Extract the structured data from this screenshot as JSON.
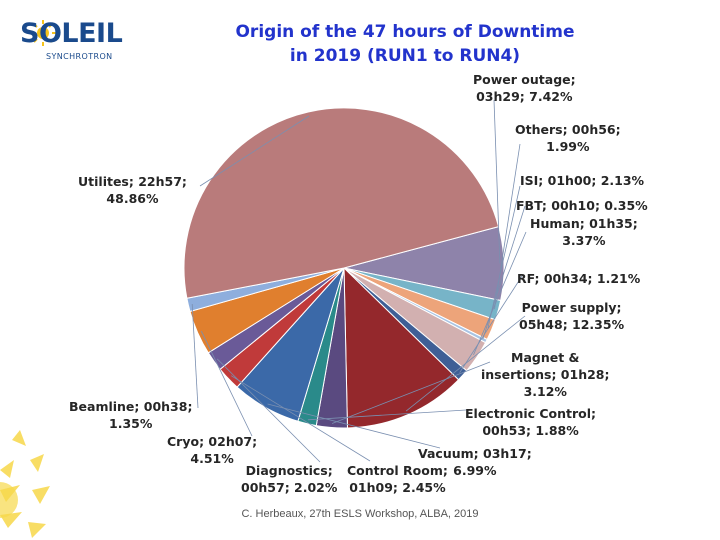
{
  "logo": {
    "text": "SOLEIL",
    "subtext": "SYNCHROTRON"
  },
  "chart_data": {
    "type": "pie",
    "title": [
      "Origin of the 47 hours of Downtime",
      "in 2019 (RUN1 to RUN4)"
    ],
    "slices": [
      {
        "category": "Power outage",
        "duration": "03h29",
        "value": 7.42,
        "color": "#8e83aa",
        "label": [
          "Power outage;",
          "03h29; 7.42%"
        ]
      },
      {
        "category": "Others",
        "duration": "00h56",
        "value": 1.99,
        "color": "#77b4c8",
        "label": [
          "Others; 00h56;",
          "1.99%"
        ]
      },
      {
        "category": "ISI",
        "duration": "01h00",
        "value": 2.13,
        "color": "#eda47a",
        "label": [
          "ISI; 01h00; 2.13%"
        ]
      },
      {
        "category": "FBT",
        "duration": "00h10",
        "value": 0.35,
        "color": "#a9c4e4",
        "label": [
          "FBT; 00h10; 0.35%"
        ]
      },
      {
        "category": "Human",
        "duration": "01h35",
        "value": 3.37,
        "color": "#d2b0b0",
        "label": [
          "Human; 01h35;",
          "3.37%"
        ]
      },
      {
        "category": "RF",
        "duration": "00h34",
        "value": 1.21,
        "color": "#3f5f96",
        "label": [
          "RF; 00h34; 1.21%"
        ]
      },
      {
        "category": "Power supply",
        "duration": "05h48",
        "value": 12.35,
        "color": "#94282c",
        "label": [
          "Power supply;",
          "05h48; 12.35%"
        ]
      },
      {
        "category": "Magnet & insertions",
        "duration": "01h28",
        "value": 3.12,
        "color": "#5a4a80",
        "label": [
          "Magnet &",
          "insertions; 01h28;",
          "3.12%"
        ]
      },
      {
        "category": "Electronic Control",
        "duration": "00h53",
        "value": 1.88,
        "color": "#2a8a8a",
        "label": [
          "Electronic Control;",
          "00h53; 1.88%"
        ]
      },
      {
        "category": "Vacuum",
        "duration": "03h17",
        "value": 6.99,
        "color": "#3b69a8",
        "label": [
          "Vacuum; 03h17;",
          "6.99%"
        ]
      },
      {
        "category": "Control Room",
        "duration": "01h09",
        "value": 2.45,
        "color": "#c03a3a",
        "label": [
          "Control Room;",
          "01h09; 2.45%"
        ]
      },
      {
        "category": "Diagnostics",
        "duration": "00h57",
        "value": 2.02,
        "color": "#6a5a98",
        "label": [
          "Diagnostics;",
          "00h57; 2.02%"
        ]
      },
      {
        "category": "Cryo",
        "duration": "02h07",
        "value": 4.51,
        "color": "#e07f2e",
        "label": [
          "Cryo; 02h07;",
          "4.51%"
        ]
      },
      {
        "category": "Beamline",
        "duration": "00h38",
        "value": 1.35,
        "color": "#8eaedd",
        "label": [
          "Beamline; 00h38;",
          "1.35%"
        ]
      },
      {
        "category": "Utilites",
        "duration": "22h57",
        "value": 48.86,
        "color": "#b97b7b",
        "label": [
          "Utilites; 22h57;",
          "48.86%"
        ]
      }
    ]
  },
  "footer": "C. Herbeaux, 27th ESLS Workshop, ALBA, 2019"
}
